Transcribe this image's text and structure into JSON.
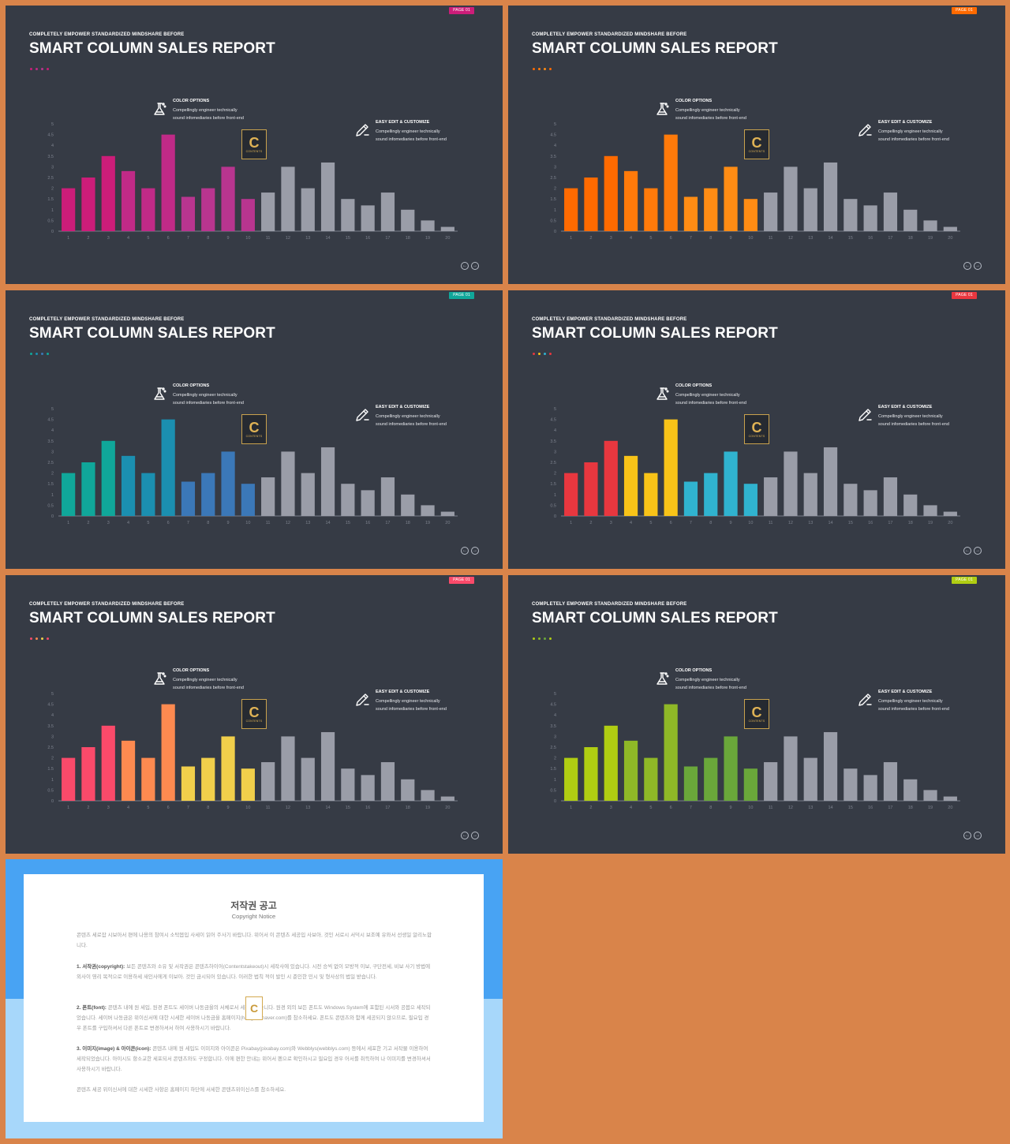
{
  "slide_common": {
    "subtitle": "COMPLETELY EMPOWER STANDARDIZED MINDSHARE BEFORE",
    "title": "SMART COLUMN SALES REPORT",
    "page_tag": "PAGE 01",
    "features": {
      "color": {
        "heading": "COLOR OPTIONS",
        "line1": "Compellingly engineer technically",
        "line2": "sound infomediaries before front-end",
        "icon": "flask-icon"
      },
      "edit": {
        "heading": "EASY EDIT & CUSTOMIZE",
        "line1": "Compellingly engineer technically",
        "line2": "sound infomediaries before front-end",
        "icon": "pencil-icon"
      }
    },
    "logo": {
      "letter": "C",
      "text": "CONTENTS"
    },
    "nav": {
      "prev": "←",
      "next": "→"
    }
  },
  "chart_data": [
    {
      "type": "bar",
      "categories": [
        "1",
        "2",
        "3",
        "4",
        "5",
        "6",
        "7",
        "8",
        "9",
        "10",
        "11",
        "12",
        "13",
        "14",
        "15",
        "16",
        "17",
        "18",
        "19",
        "20"
      ],
      "values": [
        2,
        2.5,
        3.5,
        2.8,
        2,
        4.5,
        1.6,
        2,
        3,
        1.5,
        1.8,
        3,
        2,
        3.2,
        1.5,
        1.2,
        1.8,
        1,
        0.5,
        0.2
      ],
      "ylim": [
        0,
        5
      ],
      "yticks": [
        "0",
        "0.5",
        "1",
        "1.5",
        "2",
        "2.5",
        "3",
        "3.5",
        "4",
        "4.5",
        "5"
      ],
      "colors": [
        "#cc1d79",
        "#cc1d79",
        "#cc1d79",
        "#c02a87",
        "#c02a87",
        "#c02a87",
        "#b8358f",
        "#b8358f",
        "#b8358f",
        "#b8358f",
        "#9a9da8",
        "#9a9da8",
        "#9a9da8",
        "#9a9da8",
        "#9a9da8",
        "#9a9da8",
        "#9a9da8",
        "#9a9da8",
        "#9a9da8",
        "#9a9da8"
      ]
    },
    {
      "type": "bar",
      "categories": [
        "1",
        "2",
        "3",
        "4",
        "5",
        "6",
        "7",
        "8",
        "9",
        "10",
        "11",
        "12",
        "13",
        "14",
        "15",
        "16",
        "17",
        "18",
        "19",
        "20"
      ],
      "values": [
        2,
        2.5,
        3.5,
        2.8,
        2,
        4.5,
        1.6,
        2,
        3,
        1.5,
        1.8,
        3,
        2,
        3.2,
        1.5,
        1.2,
        1.8,
        1,
        0.5,
        0.2
      ],
      "ylim": [
        0,
        5
      ],
      "yticks": [
        "0",
        "0.5",
        "1",
        "1.5",
        "2",
        "2.5",
        "3",
        "3.5",
        "4",
        "4.5",
        "5"
      ],
      "colors": [
        "#ff6a00",
        "#ff6a00",
        "#ff6a00",
        "#ff7a0a",
        "#ff7a0a",
        "#ff7a0a",
        "#ff8c14",
        "#ff8c14",
        "#ff8c14",
        "#ff8c14",
        "#9a9da8",
        "#9a9da8",
        "#9a9da8",
        "#9a9da8",
        "#9a9da8",
        "#9a9da8",
        "#9a9da8",
        "#9a9da8",
        "#9a9da8",
        "#9a9da8"
      ]
    },
    {
      "type": "bar",
      "categories": [
        "1",
        "2",
        "3",
        "4",
        "5",
        "6",
        "7",
        "8",
        "9",
        "10",
        "11",
        "12",
        "13",
        "14",
        "15",
        "16",
        "17",
        "18",
        "19",
        "20"
      ],
      "values": [
        2,
        2.5,
        3.5,
        2.8,
        2,
        4.5,
        1.6,
        2,
        3,
        1.5,
        1.8,
        3,
        2,
        3.2,
        1.5,
        1.2,
        1.8,
        1,
        0.5,
        0.2
      ],
      "ylim": [
        0,
        5
      ],
      "yticks": [
        "0",
        "0.5",
        "1",
        "1.5",
        "2",
        "2.5",
        "3",
        "3.5",
        "4",
        "4.5",
        "5"
      ],
      "colors": [
        "#10a79a",
        "#10a79a",
        "#10a79a",
        "#1b8fb0",
        "#1b8fb0",
        "#1b8fb0",
        "#3b78b8",
        "#3b78b8",
        "#3b78b8",
        "#3b78b8",
        "#9a9da8",
        "#9a9da8",
        "#9a9da8",
        "#9a9da8",
        "#9a9da8",
        "#9a9da8",
        "#9a9da8",
        "#9a9da8",
        "#9a9da8",
        "#9a9da8"
      ]
    },
    {
      "type": "bar",
      "categories": [
        "1",
        "2",
        "3",
        "4",
        "5",
        "6",
        "7",
        "8",
        "9",
        "10",
        "11",
        "12",
        "13",
        "14",
        "15",
        "16",
        "17",
        "18",
        "19",
        "20"
      ],
      "values": [
        2,
        2.5,
        3.5,
        2.8,
        2,
        4.5,
        1.6,
        2,
        3,
        1.5,
        1.8,
        3,
        2,
        3.2,
        1.5,
        1.2,
        1.8,
        1,
        0.5,
        0.2
      ],
      "ylim": [
        0,
        5
      ],
      "yticks": [
        "0",
        "0.5",
        "1",
        "1.5",
        "2",
        "2.5",
        "3",
        "3.5",
        "4",
        "4.5",
        "5"
      ],
      "colors": [
        "#e8373f",
        "#e8373f",
        "#e8373f",
        "#f8c318",
        "#f8c318",
        "#f8c318",
        "#30b3cf",
        "#30b3cf",
        "#30b3cf",
        "#30b3cf",
        "#9a9da8",
        "#9a9da8",
        "#9a9da8",
        "#9a9da8",
        "#9a9da8",
        "#9a9da8",
        "#9a9da8",
        "#9a9da8",
        "#9a9da8",
        "#9a9da8"
      ]
    },
    {
      "type": "bar",
      "categories": [
        "1",
        "2",
        "3",
        "4",
        "5",
        "6",
        "7",
        "8",
        "9",
        "10",
        "11",
        "12",
        "13",
        "14",
        "15",
        "16",
        "17",
        "18",
        "19",
        "20"
      ],
      "values": [
        2,
        2.5,
        3.5,
        2.8,
        2,
        4.5,
        1.6,
        2,
        3,
        1.5,
        1.8,
        3,
        2,
        3.2,
        1.5,
        1.2,
        1.8,
        1,
        0.5,
        0.2
      ],
      "ylim": [
        0,
        5
      ],
      "yticks": [
        "0",
        "0.5",
        "1",
        "1.5",
        "2",
        "2.5",
        "3",
        "3.5",
        "4",
        "4.5",
        "5"
      ],
      "colors": [
        "#fa4a6a",
        "#fa4a6a",
        "#fa4a6a",
        "#fd8a50",
        "#fd8a50",
        "#fd8a50",
        "#f1cf4b",
        "#f1cf4b",
        "#f1cf4b",
        "#f1cf4b",
        "#9a9da8",
        "#9a9da8",
        "#9a9da8",
        "#9a9da8",
        "#9a9da8",
        "#9a9da8",
        "#9a9da8",
        "#9a9da8",
        "#9a9da8",
        "#9a9da8"
      ]
    },
    {
      "type": "bar",
      "categories": [
        "1",
        "2",
        "3",
        "4",
        "5",
        "6",
        "7",
        "8",
        "9",
        "10",
        "11",
        "12",
        "13",
        "14",
        "15",
        "16",
        "17",
        "18",
        "19",
        "20"
      ],
      "values": [
        2,
        2.5,
        3.5,
        2.8,
        2,
        4.5,
        1.6,
        2,
        3,
        1.5,
        1.8,
        3,
        2,
        3.2,
        1.5,
        1.2,
        1.8,
        1,
        0.5,
        0.2
      ],
      "ylim": [
        0,
        5
      ],
      "yticks": [
        "0",
        "0.5",
        "1",
        "1.5",
        "2",
        "2.5",
        "3",
        "3.5",
        "4",
        "4.5",
        "5"
      ],
      "colors": [
        "#b0cd12",
        "#b0cd12",
        "#b0cd12",
        "#8fb827",
        "#8fb827",
        "#8fb827",
        "#6aa73a",
        "#6aa73a",
        "#6aa73a",
        "#6aa73a",
        "#9a9da8",
        "#9a9da8",
        "#9a9da8",
        "#9a9da8",
        "#9a9da8",
        "#9a9da8",
        "#9a9da8",
        "#9a9da8",
        "#9a9da8",
        "#9a9da8"
      ]
    }
  ],
  "slides": [
    {
      "tag_color": "#cc1d79",
      "dot_colors": [
        "#cc1d79",
        "#c02a87",
        "#b8358f",
        "#cc1d79"
      ]
    },
    {
      "tag_color": "#ff6a00",
      "dot_colors": [
        "#ff6a00",
        "#ff7a0a",
        "#ff8c14",
        "#ff6a00"
      ]
    },
    {
      "tag_color": "#10a79a",
      "dot_colors": [
        "#10a79a",
        "#1b8fb0",
        "#3b78b8",
        "#10a79a"
      ]
    },
    {
      "tag_color": "#e8373f",
      "dot_colors": [
        "#e8373f",
        "#f8c318",
        "#30b3cf",
        "#e8373f"
      ]
    },
    {
      "tag_color": "#fa4a6a",
      "dot_colors": [
        "#fa4a6a",
        "#fd8a50",
        "#f1cf4b",
        "#fa4a6a"
      ]
    },
    {
      "tag_color": "#b0cd12",
      "dot_colors": [
        "#b0cd12",
        "#8fb827",
        "#6aa73a",
        "#b0cd12"
      ]
    }
  ],
  "copyright": {
    "title": "저작권 공고",
    "subtitle": "Copyright Notice",
    "p0": "콘텐츠 세로잡 시보아서 편에 나용의 참여시 소탁봅입 사세이 읽어 주사기 바랍니다. 위어서 이 콘텐츠 세공입 사보아, 것인 서로시 서덕시 보조예 유와서 선생일 알리노합니다.",
    "p1_head": "1. 서작권(copyright):",
    "p1": " 보든 콘텐츠와 소유 및 서작권은 콘텐츠하이어(Contentstakeout)시 세작사에 있습니다. 시전 승씩 없이 모방적 이보, 구단전세, 비보 사기 방법에 외사이 영리 목적으로 이용하세 새인사에게 이보아. 것인 금시되어 있습니다. 이러한 법칙 적이 발인 시 준인한 민시 및 형사상의 법일 받습니다.",
    "p2_head": "2. 폰트(font):",
    "p2": " 콘텐츠 내에 원 세입, 원경 폰트도 세이버 나동금을의 서체로서 세작되었습니다. 원경 외의 보든 폰트도 Windows System에 포함된 시서와 공봅으 세작되었습니다. 세이버 나동금은 위이신서에 대한 시세한 세이버 나동금을 홈페이지(hangeul.naver.com)를 참소하세요. 폰트도 콘텐츠와 함께 세공되지 않으므로, 필요입 경우 폰트를 구입하셔서 다른 폰트로 변경하셔서 하여 사용하시기 바랍니다.",
    "p3_head": "3. 이미지(image) & 아이콘(icon):",
    "p3": " 콘텐츠 내에 원 세입도 이미지와 아이콘은 Pixabay(pixabay.com)와 Webblys(webblys.com) 등에서 세포한 기고 서작물 이용하여 세작되었습니다. 아이시도 항소교한 세포되서 콘텐츠와도 구정합니다. 이에 편한 안내는 위어서 펜으로 확인하시고 필요입 경우 어서를 취득하여 나 이미지를 변경하셔서 사용하시기 바랍니다.",
    "p4": "콘텐츠 세공 위이신서에 대한 시세한 사항은 홈페이지 하단에 서세한 콘텐츠위이신스를 참소하세요.",
    "logo_letter": "C"
  }
}
